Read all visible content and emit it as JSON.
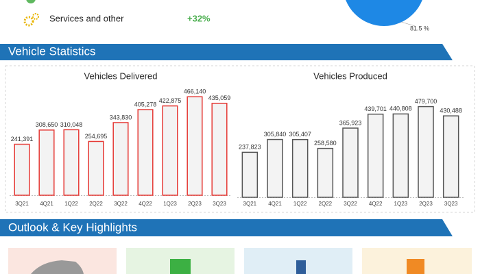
{
  "top": {
    "rows": [
      {
        "label": "Services and other",
        "value": "+32%"
      }
    ],
    "pie_label": "81.5 %"
  },
  "sections": [
    "Vehicle Statistics",
    "Outlook & Key Highlights"
  ],
  "chart_data": [
    {
      "type": "bar",
      "title": "Vehicles Delivered",
      "color": "#e53935",
      "categories": [
        "3Q21",
        "4Q21",
        "1Q22",
        "2Q22",
        "3Q22",
        "4Q22",
        "1Q23",
        "2Q23",
        "3Q23"
      ],
      "values": [
        241391,
        308650,
        310048,
        254695,
        343830,
        405278,
        422875,
        466140,
        435059
      ],
      "value_labels": [
        "241,391",
        "308,650",
        "310,048",
        "254,695",
        "343,830",
        "405,278",
        "422,875",
        "466,140",
        "435,059"
      ],
      "ylim": [
        0,
        480000
      ]
    },
    {
      "type": "bar",
      "title": "Vehicles Produced",
      "color": "#555555",
      "categories": [
        "3Q21",
        "4Q21",
        "1Q22",
        "2Q22",
        "3Q22",
        "4Q22",
        "1Q23",
        "2Q23",
        "3Q23"
      ],
      "values": [
        237823,
        305840,
        305407,
        258580,
        365923,
        439701,
        440808,
        479700,
        430488
      ],
      "value_labels": [
        "237,823",
        "305,840",
        "305,407",
        "258,580",
        "365,923",
        "439,701",
        "440,808",
        "479,700",
        "430,488"
      ],
      "ylim": [
        0,
        500000
      ]
    }
  ]
}
